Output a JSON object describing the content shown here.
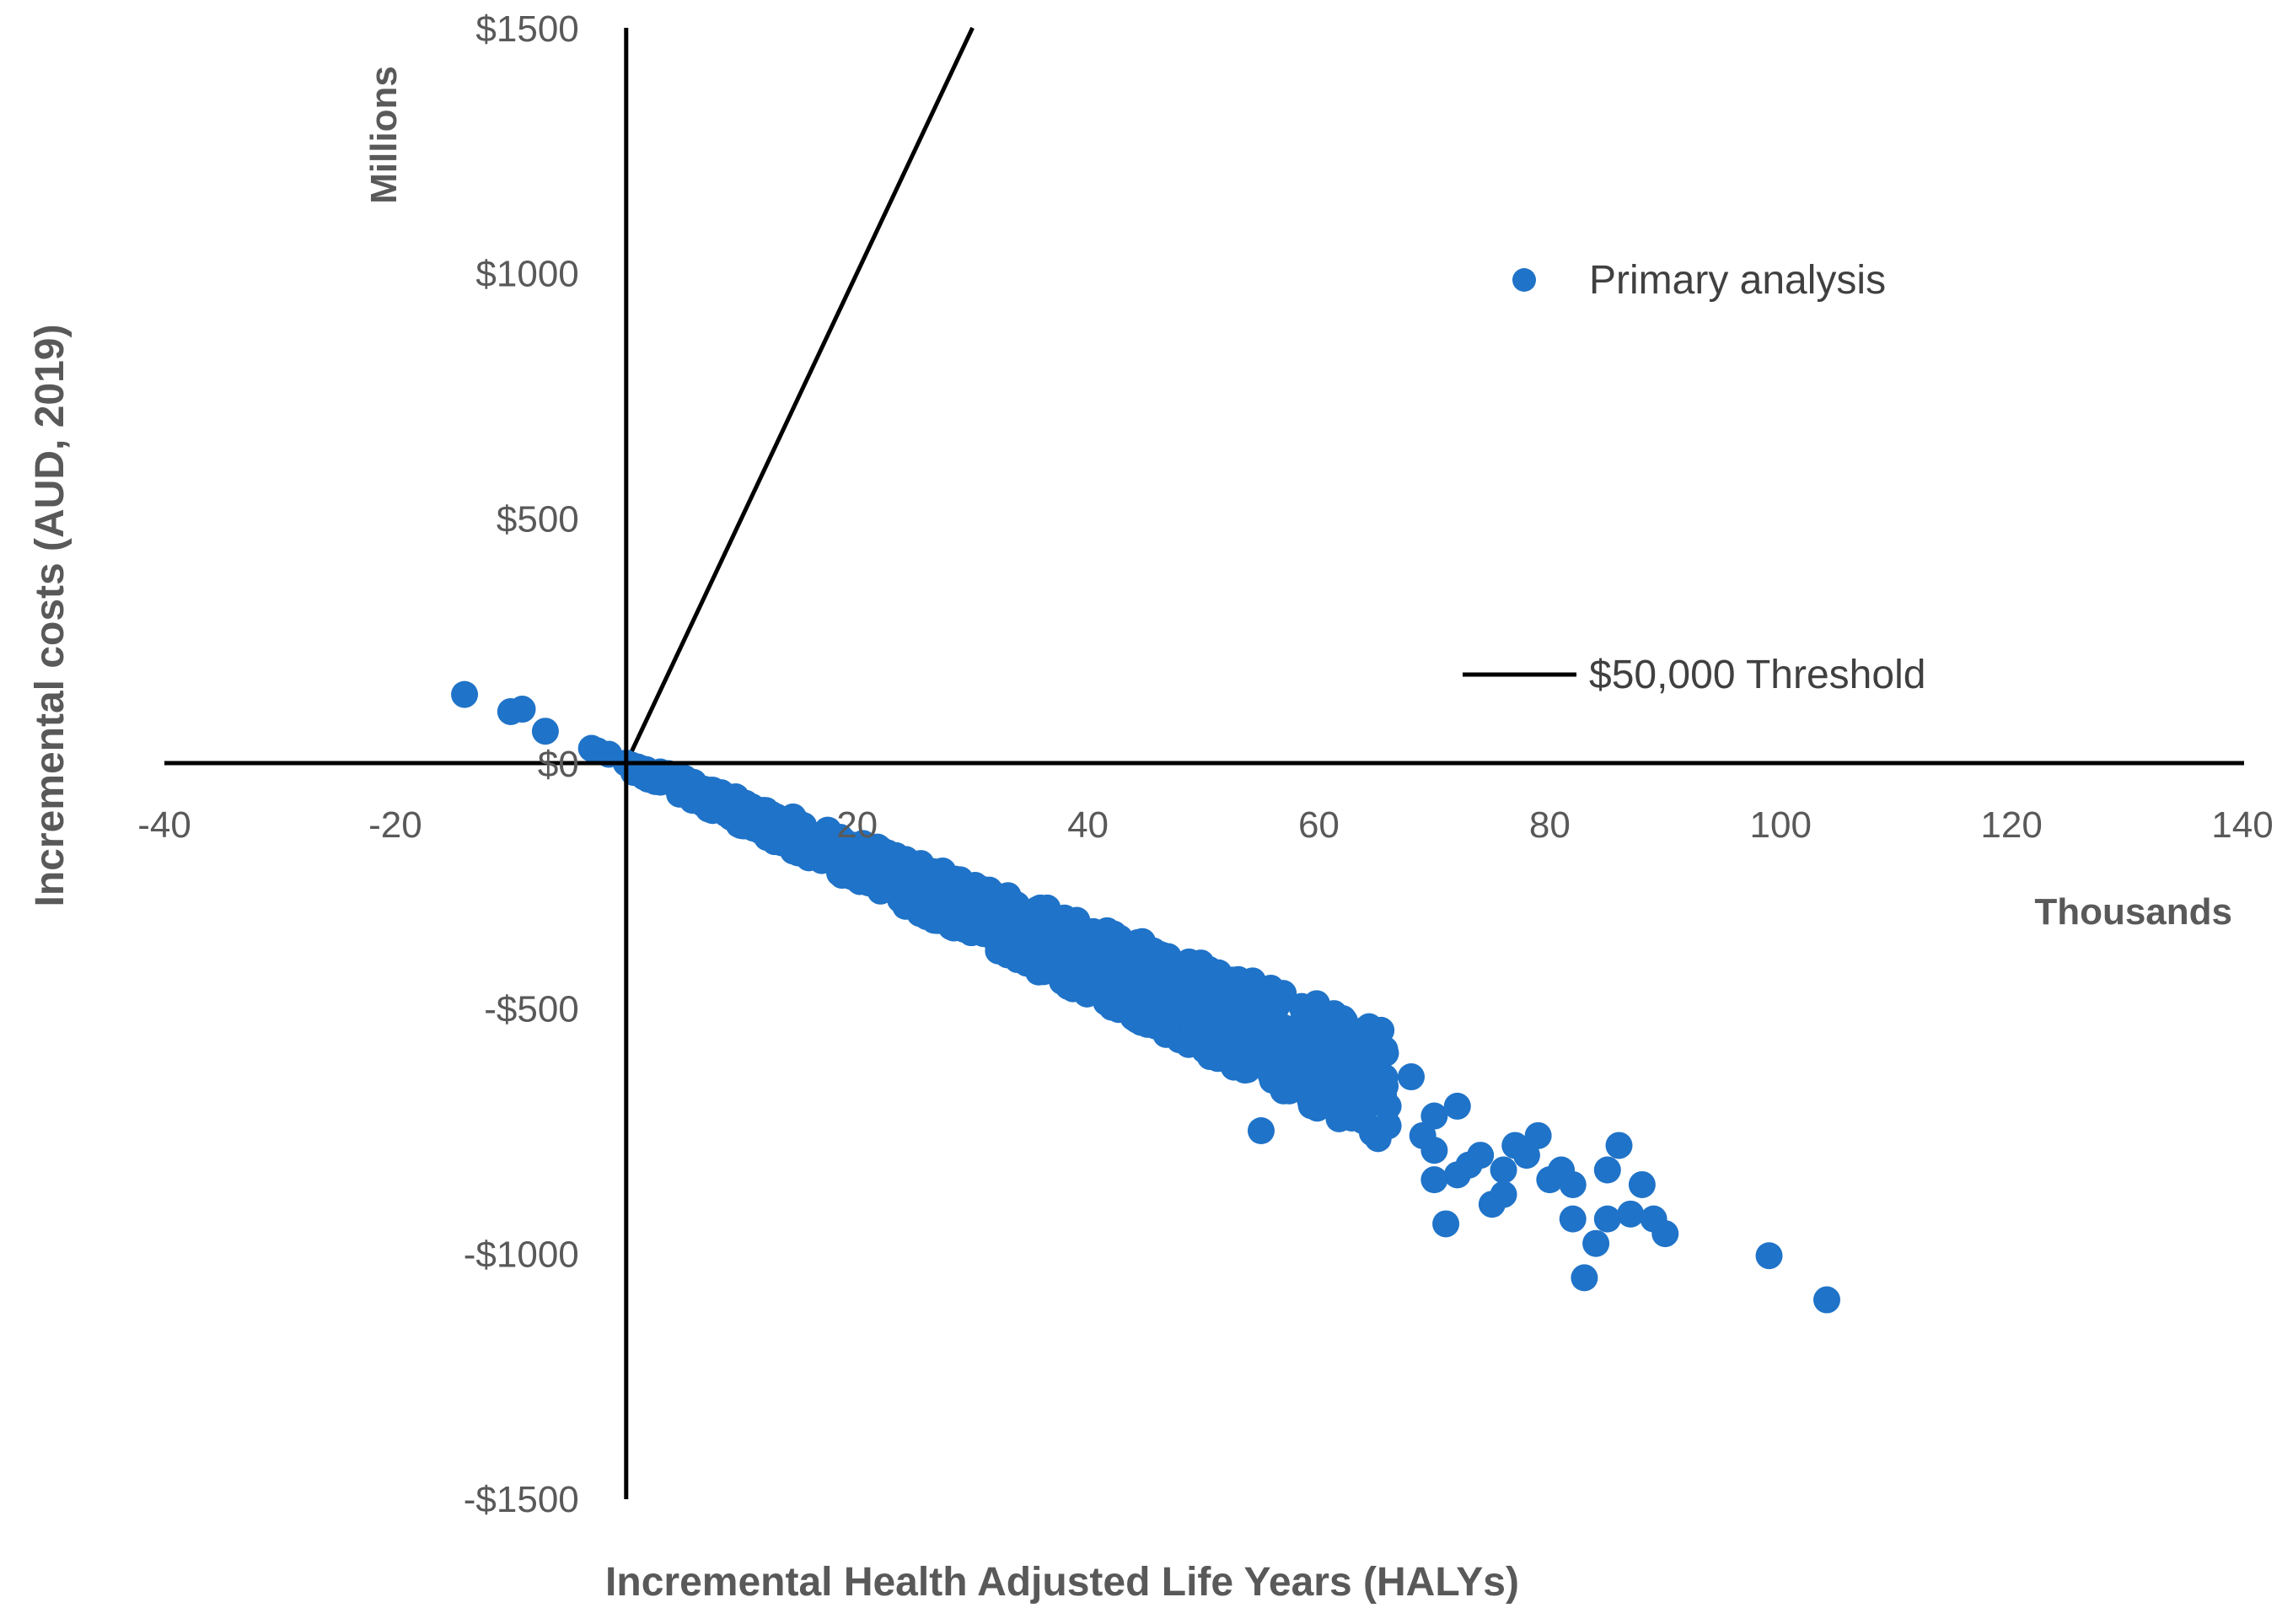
{
  "chart_data": {
    "type": "scatter",
    "title": "",
    "xlabel": "Incremental Health Adjusted Life Years (HALYs)",
    "ylabel": "Incremental costs (AUD, 2019)",
    "x_unit_label": "Thousands",
    "y_unit_label": "Millions",
    "xlim": [
      -40,
      140
    ],
    "ylim": [
      -1500,
      1500
    ],
    "x_ticks": [
      "-40",
      "-20",
      "20",
      "40",
      "60",
      "80",
      "100",
      "120",
      "140"
    ],
    "x_tick_values": [
      -40,
      -20,
      20,
      40,
      60,
      80,
      100,
      120,
      140
    ],
    "y_ticks": [
      "$1500",
      "$1000",
      "$500",
      "$0",
      "-$500",
      "-$1000",
      "-$1500"
    ],
    "y_tick_values": [
      1500,
      1000,
      500,
      0,
      -500,
      -1000,
      -1500
    ],
    "grid": false,
    "legend_position": "right",
    "colors": {
      "series": "#1F73C8",
      "threshold": "#000000",
      "axis": "#000000",
      "text": "#595959"
    },
    "series": [
      {
        "name": "Primary analysis",
        "type": "scatter",
        "description": "Monte Carlo draws; the dense band follows roughly y = -10 * x (millions per thousand HALYs) from the origin to about x = 65 with spread widening to the right",
        "points": [
          [
            -14,
            140
          ],
          [
            -10,
            105
          ],
          [
            -9,
            110
          ],
          [
            -7,
            65
          ],
          [
            -3,
            30
          ],
          [
            -2.5,
            25
          ],
          [
            -1.5,
            18
          ],
          [
            0,
            0
          ],
          [
            1,
            -8
          ],
          [
            2,
            -20
          ],
          [
            3,
            -28
          ],
          [
            4,
            -40
          ],
          [
            5,
            -48
          ],
          [
            6,
            -60
          ],
          [
            7,
            -68
          ],
          [
            8,
            -80
          ],
          [
            9,
            -88
          ],
          [
            10,
            -100
          ],
          [
            11,
            -108
          ],
          [
            12,
            -118
          ],
          [
            13,
            -125
          ],
          [
            14,
            -140
          ],
          [
            15,
            -150
          ],
          [
            16,
            -158
          ],
          [
            17,
            -165
          ],
          [
            18,
            -180
          ],
          [
            19,
            -185
          ],
          [
            20,
            -200
          ],
          [
            21,
            -205
          ],
          [
            22,
            -220
          ],
          [
            23,
            -228
          ],
          [
            24,
            -240
          ],
          [
            25,
            -245
          ],
          [
            26,
            -255
          ],
          [
            27,
            -268
          ],
          [
            28,
            -280
          ],
          [
            29,
            -288
          ],
          [
            30,
            -300
          ],
          [
            31,
            -310
          ],
          [
            32,
            -315
          ],
          [
            33,
            -330
          ],
          [
            34,
            -335
          ],
          [
            35,
            -350
          ],
          [
            36,
            -358
          ],
          [
            37,
            -365
          ],
          [
            38,
            -378
          ],
          [
            39,
            -385
          ],
          [
            40,
            -400
          ],
          [
            41,
            -405
          ],
          [
            42,
            -420
          ],
          [
            43,
            -428
          ],
          [
            44,
            -440
          ],
          [
            45,
            -445
          ],
          [
            46,
            -455
          ],
          [
            47,
            -470
          ],
          [
            48,
            -478
          ],
          [
            49,
            -485
          ],
          [
            50,
            -500
          ],
          [
            51,
            -505
          ],
          [
            52,
            -520
          ],
          [
            53,
            -530
          ],
          [
            54,
            -540
          ],
          [
            55,
            -548
          ],
          [
            56,
            -555
          ],
          [
            57,
            -570
          ],
          [
            58,
            -575
          ],
          [
            59,
            -588
          ],
          [
            60,
            -600
          ],
          [
            61,
            -608
          ],
          [
            62,
            -615
          ],
          [
            63,
            -630
          ],
          [
            64,
            -640
          ],
          [
            65,
            -648
          ],
          [
            20,
            -180
          ],
          [
            25,
            -290
          ],
          [
            30,
            -270
          ],
          [
            32,
            -360
          ],
          [
            35,
            -310
          ],
          [
            38,
            -420
          ],
          [
            40,
            -360
          ],
          [
            42,
            -460
          ],
          [
            44,
            -400
          ],
          [
            46,
            -500
          ],
          [
            48,
            -440
          ],
          [
            50,
            -550
          ],
          [
            52,
            -470
          ],
          [
            54,
            -600
          ],
          [
            56,
            -520
          ],
          [
            58,
            -640
          ],
          [
            60,
            -560
          ],
          [
            62,
            -680
          ],
          [
            64,
            -600
          ],
          [
            66,
            -700
          ],
          [
            68,
            -640
          ],
          [
            70,
            -720
          ],
          [
            55,
            -750
          ],
          [
            60,
            -700
          ],
          [
            66,
            -740
          ],
          [
            69,
            -760
          ],
          [
            70,
            -790
          ],
          [
            72,
            -700
          ],
          [
            72,
            -840
          ],
          [
            73,
            -820
          ],
          [
            74,
            -800
          ],
          [
            76,
            -830
          ],
          [
            76,
            -880
          ],
          [
            78,
            -800
          ],
          [
            79,
            -760
          ],
          [
            80,
            -850
          ],
          [
            81,
            -830
          ],
          [
            82,
            -860
          ],
          [
            82,
            -930
          ],
          [
            83,
            -1050
          ],
          [
            84,
            -980
          ],
          [
            85,
            -930
          ],
          [
            85,
            -830
          ],
          [
            86,
            -780
          ],
          [
            87,
            -920
          ],
          [
            88,
            -860
          ],
          [
            89,
            -930
          ],
          [
            90,
            -960
          ],
          [
            71,
            -940
          ],
          [
            70,
            -850
          ],
          [
            75,
            -900
          ],
          [
            77,
            -780
          ],
          [
            99,
            -1005
          ],
          [
            104,
            -1095
          ]
        ]
      },
      {
        "name": "$50,000 Threshold",
        "type": "line",
        "slope_per_unit": 50,
        "points": [
          [
            0,
            0
          ],
          [
            30,
            1500
          ]
        ]
      }
    ],
    "legend": [
      {
        "label": "Primary analysis",
        "marker": "circle"
      },
      {
        "label": "$50,000 Threshold",
        "marker": "line"
      }
    ]
  }
}
